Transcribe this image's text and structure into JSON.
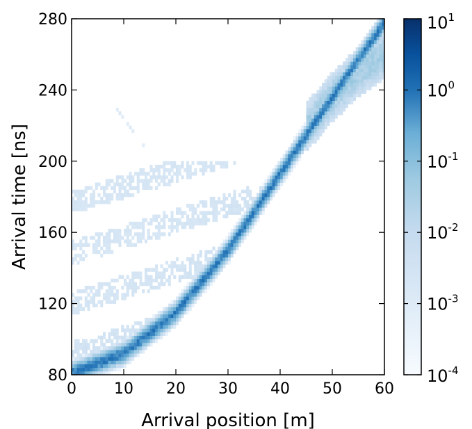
{
  "chart_data": {
    "type": "heatmap",
    "xlabel": "Arrival position  [m]",
    "ylabel": "Arrival time  [ns]",
    "xlim": [
      0,
      60
    ],
    "ylim": [
      80,
      280
    ],
    "x_ticks": [
      "0",
      "10",
      "20",
      "30",
      "40",
      "50",
      "60"
    ],
    "y_ticks": [
      "80",
      "120",
      "160",
      "200",
      "240",
      "280"
    ],
    "x_tick_values": [
      0,
      10,
      20,
      30,
      40,
      50,
      60
    ],
    "y_tick_values": [
      80,
      120,
      160,
      200,
      240,
      280
    ],
    "colorbar": {
      "scale": "log",
      "range": [
        0.0001,
        10
      ],
      "colormap": "Blues",
      "color_low": "#f7fbff",
      "color_high": "#08306b",
      "tick_exponents": [
        "1",
        "0",
        "-1",
        "-2",
        "-3",
        "-4"
      ],
      "tick_base": "10",
      "tick_values": [
        10,
        1,
        0.1,
        0.01,
        0.001,
        0.0001
      ]
    },
    "bin_width_m": 0.5,
    "bin_height_ns": 2,
    "grid": false,
    "features": [
      {
        "name": "direct arrival ridge",
        "x": [
          0,
          10,
          20,
          30,
          40,
          50,
          60
        ],
        "y": [
          81,
          92,
          115,
          150,
          193,
          236,
          278
        ],
        "peak_level": 0.8,
        "spread_ns": 4
      },
      {
        "name": "outer reflected band",
        "x": [
          45,
          50,
          55,
          60
        ],
        "y": [
          219,
          236,
          250,
          260
        ],
        "peak_level": 0.05,
        "spread_ns": 6
      },
      {
        "name": "reflection fan",
        "x_range": [
          0,
          39
        ],
        "y_range": [
          82,
          200
        ],
        "level": 0.002
      },
      {
        "name": "isolated streak",
        "x": [
          8,
          14
        ],
        "y": [
          232,
          208
        ],
        "level": 0.0008
      }
    ]
  }
}
